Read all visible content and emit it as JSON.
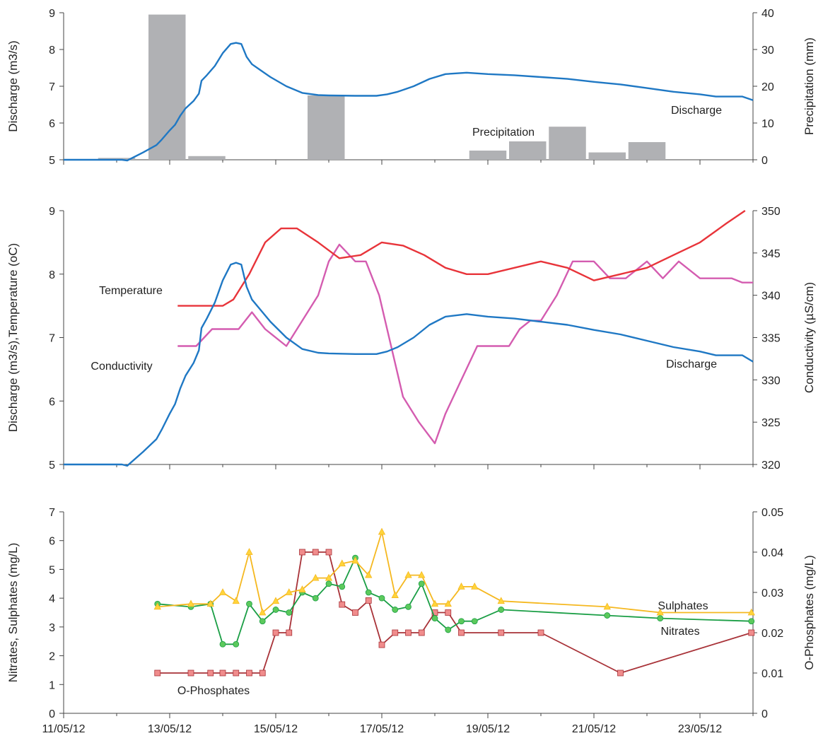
{
  "colors": {
    "discharge": "#1f78c4",
    "temperature": "#e8343a",
    "conductivity": "#d45cb0",
    "precipitation": "#b0b1b4",
    "nitrates_line": "#1a9e45",
    "nitrates_marker": "#5cc95c",
    "sulphates_line": "#f5b820",
    "sulphates_marker": "#ffd43b",
    "phosphates_line": "#a83238",
    "phosphates_marker": "#f08c8c"
  },
  "x_axis": {
    "ticks": [
      "11/05/12",
      "13/05/12",
      "15/05/12",
      "17/05/12",
      "19/05/12",
      "21/05/12",
      "23/05/12"
    ],
    "domain": [
      0,
      13
    ]
  },
  "chart_data": [
    {
      "type": "line",
      "ylabel_left": "Discharge  (m3/s)",
      "ylabel_right": "Precipitation (mm)",
      "ylim_left": [
        5,
        9
      ],
      "ylim_right": [
        0,
        40
      ],
      "yticks_left": [
        "5",
        "6",
        "7",
        "8",
        "9"
      ],
      "yticks_right": [
        "0",
        "10",
        "20",
        "30",
        "40"
      ],
      "series_labels": {
        "discharge": "Discharge",
        "precipitation": "Precipitation"
      },
      "discharge": {
        "x": [
          0,
          0.5,
          1.0,
          1.1,
          1.2,
          1.5,
          1.75,
          1.85,
          2.0,
          2.1,
          2.2,
          2.3,
          2.45,
          2.55,
          2.6,
          2.7,
          2.85,
          3.0,
          3.15,
          3.25,
          3.35,
          3.45,
          3.55,
          3.7,
          3.9,
          4.2,
          4.5,
          4.8,
          5.0,
          5.5,
          5.9,
          6.1,
          6.3,
          6.6,
          6.9,
          7.2,
          7.6,
          8.0,
          8.5,
          9.0,
          9.5,
          10.0,
          10.5,
          11.0,
          11.5,
          12.0,
          12.3,
          12.8,
          13.0
        ],
        "y": [
          5.0,
          5.0,
          5.0,
          5.0,
          4.98,
          5.2,
          5.4,
          5.55,
          5.8,
          5.95,
          6.2,
          6.4,
          6.6,
          6.8,
          7.15,
          7.3,
          7.55,
          7.9,
          8.15,
          8.18,
          8.15,
          7.8,
          7.6,
          7.45,
          7.25,
          7.0,
          6.82,
          6.76,
          6.75,
          6.74,
          6.74,
          6.78,
          6.85,
          7.0,
          7.2,
          7.33,
          7.37,
          7.33,
          7.3,
          7.25,
          7.2,
          7.12,
          7.05,
          6.95,
          6.85,
          6.78,
          6.72,
          6.72,
          6.62
        ]
      },
      "precipitation": {
        "x": [
          1.0,
          1.95,
          2.7,
          4.95,
          8.0,
          8.75,
          9.5,
          10.25,
          11.0
        ],
        "values": [
          0.5,
          39.5,
          1.0,
          17.5,
          2.5,
          5.0,
          9.0,
          2.0,
          4.8
        ]
      }
    },
    {
      "type": "line",
      "ylabel_left": "Discharge  (m3/s),Temperature (oC)",
      "ylabel_right": "Conductivity (µS/cm)",
      "ylim_left": [
        5,
        9
      ],
      "ylim_right": [
        320,
        350
      ],
      "yticks_left": [
        "5",
        "6",
        "7",
        "8",
        "9"
      ],
      "yticks_right": [
        "320",
        "325",
        "330",
        "335",
        "340",
        "345",
        "350"
      ],
      "series_labels": {
        "temperature": "Temperature",
        "conductivity": "Conductivity",
        "discharge": "Discharge"
      },
      "discharge": {
        "x": [
          0,
          0.5,
          1.0,
          1.1,
          1.2,
          1.5,
          1.75,
          1.85,
          2.0,
          2.1,
          2.2,
          2.3,
          2.45,
          2.55,
          2.6,
          2.7,
          2.85,
          3.0,
          3.15,
          3.25,
          3.35,
          3.45,
          3.55,
          3.7,
          3.9,
          4.2,
          4.5,
          4.8,
          5.0,
          5.5,
          5.9,
          6.1,
          6.3,
          6.6,
          6.9,
          7.2,
          7.6,
          8.0,
          8.5,
          9.0,
          9.5,
          10.0,
          10.5,
          11.0,
          11.5,
          12.0,
          12.3,
          12.8,
          13.0
        ],
        "y": [
          5.0,
          5.0,
          5.0,
          5.0,
          4.98,
          5.2,
          5.4,
          5.55,
          5.8,
          5.95,
          6.2,
          6.4,
          6.6,
          6.8,
          7.15,
          7.3,
          7.55,
          7.9,
          8.15,
          8.18,
          8.15,
          7.8,
          7.6,
          7.45,
          7.25,
          7.0,
          6.82,
          6.76,
          6.75,
          6.74,
          6.74,
          6.78,
          6.85,
          7.0,
          7.2,
          7.33,
          7.37,
          7.33,
          7.3,
          7.25,
          7.2,
          7.12,
          7.05,
          6.95,
          6.85,
          6.78,
          6.72,
          6.72,
          6.62
        ]
      },
      "temperature": {
        "x": [
          2.15,
          3.0,
          3.2,
          3.5,
          3.8,
          4.1,
          4.4,
          4.8,
          5.2,
          5.6,
          6.0,
          6.4,
          6.8,
          7.2,
          7.6,
          8.0,
          8.5,
          9.0,
          9.5,
          10.0,
          10.5,
          11.0,
          11.5,
          12.0,
          12.5,
          12.85
        ],
        "y": [
          7.5,
          7.5,
          7.6,
          8.0,
          8.5,
          8.72,
          8.72,
          8.5,
          8.25,
          8.3,
          8.5,
          8.45,
          8.3,
          8.1,
          8.0,
          8.0,
          8.1,
          8.2,
          8.1,
          7.9,
          8.0,
          8.1,
          8.3,
          8.5,
          8.8,
          9.0
        ]
      },
      "conductivity": {
        "x": [
          2.15,
          2.5,
          2.8,
          3.3,
          3.55,
          3.8,
          4.2,
          4.5,
          4.8,
          5.0,
          5.2,
          5.5,
          5.7,
          5.95,
          6.1,
          6.4,
          6.7,
          7.0,
          7.2,
          7.5,
          7.8,
          8.2,
          8.4,
          8.6,
          8.8,
          9.0,
          9.3,
          9.6,
          10.0,
          10.3,
          10.6,
          11.0,
          11.3,
          11.6,
          12.0,
          12.3,
          12.6,
          12.8,
          13.0
        ],
        "y": [
          334,
          334,
          336,
          336,
          338,
          336,
          334,
          337,
          340,
          344,
          346,
          344,
          344,
          340,
          336,
          328,
          325,
          322.5,
          326,
          330,
          334,
          334,
          334,
          336,
          337,
          337,
          340,
          344,
          344,
          342,
          342,
          344,
          342,
          344,
          342,
          342,
          342,
          341.5,
          341.5
        ]
      }
    },
    {
      "type": "line",
      "ylabel_left": "Nitrates, Sulphates (mg/L)",
      "ylabel_right": "O-Phosphates (mg/L)",
      "ylim_left": [
        0,
        7
      ],
      "ylim_right": [
        0,
        0.05
      ],
      "yticks_left": [
        "0",
        "1",
        "2",
        "3",
        "4",
        "5",
        "6",
        "7"
      ],
      "yticks_right": [
        "0",
        "0.01",
        "0.02",
        "0.03",
        "0.04",
        "0.05"
      ],
      "series_labels": {
        "nitrates": "Nitrates",
        "sulphates": "Sulphates",
        "phosphates": "O-Phosphates"
      },
      "sulphates": {
        "x": [
          1.77,
          2.4,
          2.77,
          3.0,
          3.25,
          3.5,
          3.75,
          4.0,
          4.25,
          4.5,
          4.75,
          5.0,
          5.25,
          5.5,
          5.75,
          6.0,
          6.25,
          6.5,
          6.75,
          7.0,
          7.25,
          7.5,
          7.75,
          8.25,
          10.25,
          11.25,
          12.97
        ],
        "y": [
          3.7,
          3.8,
          3.8,
          4.2,
          3.9,
          5.6,
          3.5,
          3.9,
          4.2,
          4.3,
          4.7,
          4.7,
          5.2,
          5.3,
          4.8,
          6.3,
          4.1,
          4.8,
          4.8,
          3.8,
          3.8,
          4.4,
          4.4,
          3.9,
          3.7,
          3.5,
          3.5
        ]
      },
      "nitrates": {
        "x": [
          1.77,
          2.4,
          2.77,
          3.0,
          3.25,
          3.5,
          3.75,
          4.0,
          4.25,
          4.5,
          4.75,
          5.0,
          5.25,
          5.5,
          5.75,
          6.0,
          6.25,
          6.5,
          6.75,
          7.0,
          7.25,
          7.5,
          7.75,
          8.25,
          10.25,
          11.25,
          12.97
        ],
        "y": [
          3.8,
          3.7,
          3.8,
          2.4,
          2.4,
          3.8,
          3.2,
          3.6,
          3.5,
          4.2,
          4.0,
          4.5,
          4.4,
          5.4,
          4.2,
          4.0,
          3.6,
          3.7,
          4.5,
          3.3,
          2.9,
          3.2,
          3.2,
          3.6,
          3.4,
          3.3,
          3.2
        ]
      },
      "phosphates": {
        "x": [
          1.77,
          2.4,
          2.77,
          3.0,
          3.25,
          3.5,
          3.75,
          4.0,
          4.25,
          4.5,
          4.75,
          5.0,
          5.25,
          5.5,
          5.75,
          6.0,
          6.25,
          6.5,
          6.75,
          7.0,
          7.25,
          7.5,
          8.25,
          9.0,
          10.5,
          12.97
        ],
        "y": [
          0.01,
          0.01,
          0.01,
          0.01,
          0.01,
          0.01,
          0.01,
          0.02,
          0.02,
          0.04,
          0.04,
          0.04,
          0.027,
          0.025,
          0.028,
          0.017,
          0.02,
          0.02,
          0.02,
          0.025,
          0.025,
          0.02,
          0.02,
          0.02,
          0.01,
          0.02
        ]
      }
    }
  ]
}
